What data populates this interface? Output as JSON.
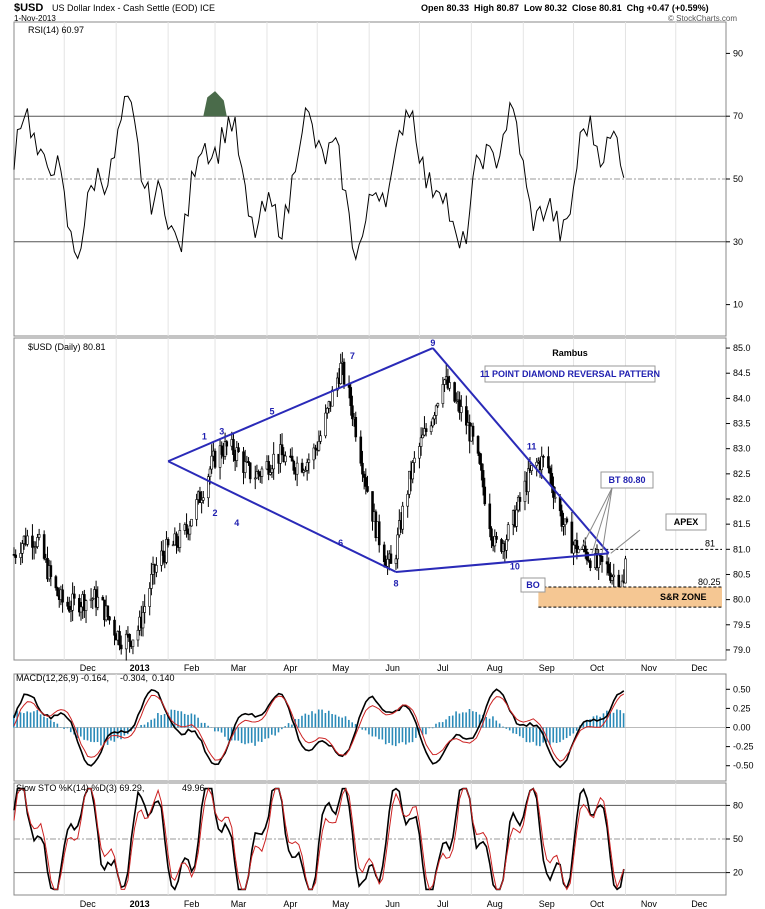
{
  "header": {
    "symbol": "$USD",
    "name": "US Dollar Index - Cash Settle (EOD) ICE",
    "date": "1-Nov-2013",
    "ohlc": "Open 80.33  High 80.87  Low 80.32  Close 80.81  Chg +0.47 (+0.59%)",
    "credit": "© StockCharts.com"
  },
  "panels": {
    "rsi_label": "RSI(14) 60.97",
    "price_label": "$USD (Daily) 80.81",
    "macd_label_main": "MACD(12,26,9) -0.164,",
    "macd_label_signal": "-0.304,",
    "macd_label_hist": "0.140",
    "sto_label_main": "Slow STO %K(14) %D(3) 69.29,",
    "sto_label_d": "49.96"
  },
  "annotations": {
    "author": "Rambus",
    "pattern": "11 POINT DIAMOND   REVERSAL PATTERN",
    "bt": "BT 80.80",
    "apex": "APEX",
    "bo": "BO",
    "sr_zone": "S&R ZONE",
    "level_81": "81",
    "level_8025": "80.25",
    "points": [
      "1",
      "2",
      "3",
      "4",
      "5",
      "6",
      "7",
      "8",
      "9",
      "10",
      "11"
    ]
  },
  "x_axis": {
    "months": [
      "Dec",
      "2013",
      "Feb",
      "Mar",
      "Apr",
      "May",
      "Jun",
      "Jul",
      "Aug",
      "Sep",
      "Oct",
      "Nov",
      "Dec"
    ]
  },
  "colors": {
    "diamond": "#2a2ab8",
    "label_blue": "#1f1fb0",
    "sr_zone": "#f5c793",
    "histogram": "#2a8ab8",
    "signal": "#cc2222",
    "rsi_fill": "#4a6b4a",
    "sto_d": "#cc2222"
  },
  "chart_data": [
    {
      "type": "line",
      "title": "RSI(14) 60.97",
      "ylim": [
        0,
        100
      ],
      "yticks": [
        10,
        30,
        50,
        70,
        90
      ],
      "reference_lines": [
        30,
        50,
        70
      ],
      "series": [
        {
          "name": "RSI(14)",
          "last": 60.97
        }
      ]
    },
    {
      "type": "candlestick",
      "title": "$USD (Daily) 80.81",
      "ylim": [
        78.8,
        85.2
      ],
      "yticks": [
        79.0,
        79.5,
        80.0,
        80.5,
        81.0,
        81.5,
        82.0,
        82.5,
        83.0,
        83.5,
        84.0,
        84.5,
        85.0
      ],
      "x_range": [
        "2012-11-01",
        "2013-12-31"
      ],
      "last_bar": {
        "open": 80.33,
        "high": 80.87,
        "low": 80.32,
        "close": 80.81
      },
      "approx_closes_monthly": [
        {
          "date": "2012-11",
          "value": 80.9
        },
        {
          "date": "2012-12",
          "value": 79.7
        },
        {
          "date": "2013-01",
          "value": 79.5
        },
        {
          "date": "2013-02",
          "value": 82.0
        },
        {
          "date": "2013-03",
          "value": 83.0
        },
        {
          "date": "2013-04",
          "value": 82.4
        },
        {
          "date": "2013-05",
          "value": 84.3
        },
        {
          "date": "2013-06",
          "value": 80.6
        },
        {
          "date": "2013-07",
          "value": 84.8
        },
        {
          "date": "2013-08",
          "value": 81.3
        },
        {
          "date": "2013-09",
          "value": 82.6
        },
        {
          "date": "2013-10",
          "value": 80.3
        },
        {
          "date": "2013-11",
          "value": 80.81
        }
      ],
      "diamond_points": [
        {
          "label": "1",
          "date": "2013-02-25",
          "value": 83.1
        },
        {
          "label": "2",
          "date": "2013-03-01",
          "value": 81.9
        },
        {
          "label": "3",
          "date": "2013-03-05",
          "value": 83.2
        },
        {
          "label": "4",
          "date": "2013-03-14",
          "value": 81.7
        },
        {
          "label": "5",
          "date": "2013-04-04",
          "value": 83.6
        },
        {
          "label": "6",
          "date": "2013-05-15",
          "value": 81.3
        },
        {
          "label": "7",
          "date": "2013-05-22",
          "value": 84.7
        },
        {
          "label": "8",
          "date": "2013-06-17",
          "value": 80.5
        },
        {
          "label": "9",
          "date": "2013-07-09",
          "value": 85.0
        },
        {
          "label": "10",
          "date": "2013-08-27",
          "value": 80.8
        },
        {
          "label": "11",
          "date": "2013-09-06",
          "value": 82.9
        }
      ],
      "levels": {
        "apex": 81.0,
        "sr_upper": 80.25,
        "sr_lower": 79.85
      }
    },
    {
      "type": "line",
      "title": "MACD(12,26,9) -0.164, -0.304, 0.140",
      "ylim": [
        -0.7,
        0.7
      ],
      "yticks": [
        -0.5,
        -0.25,
        0.0,
        0.25,
        0.5
      ],
      "series": [
        {
          "name": "MACD",
          "last": -0.164
        },
        {
          "name": "Signal",
          "last": -0.304
        },
        {
          "name": "Histogram",
          "last": 0.14
        }
      ]
    },
    {
      "type": "line",
      "title": "Slow STO %K(14) %D(3) 69.29, 49.96",
      "ylim": [
        0,
        100
      ],
      "yticks": [
        20,
        50,
        80
      ],
      "reference_lines": [
        20,
        50,
        80
      ],
      "series": [
        {
          "name": "%K",
          "last": 69.29
        },
        {
          "name": "%D",
          "last": 49.96
        }
      ]
    }
  ]
}
